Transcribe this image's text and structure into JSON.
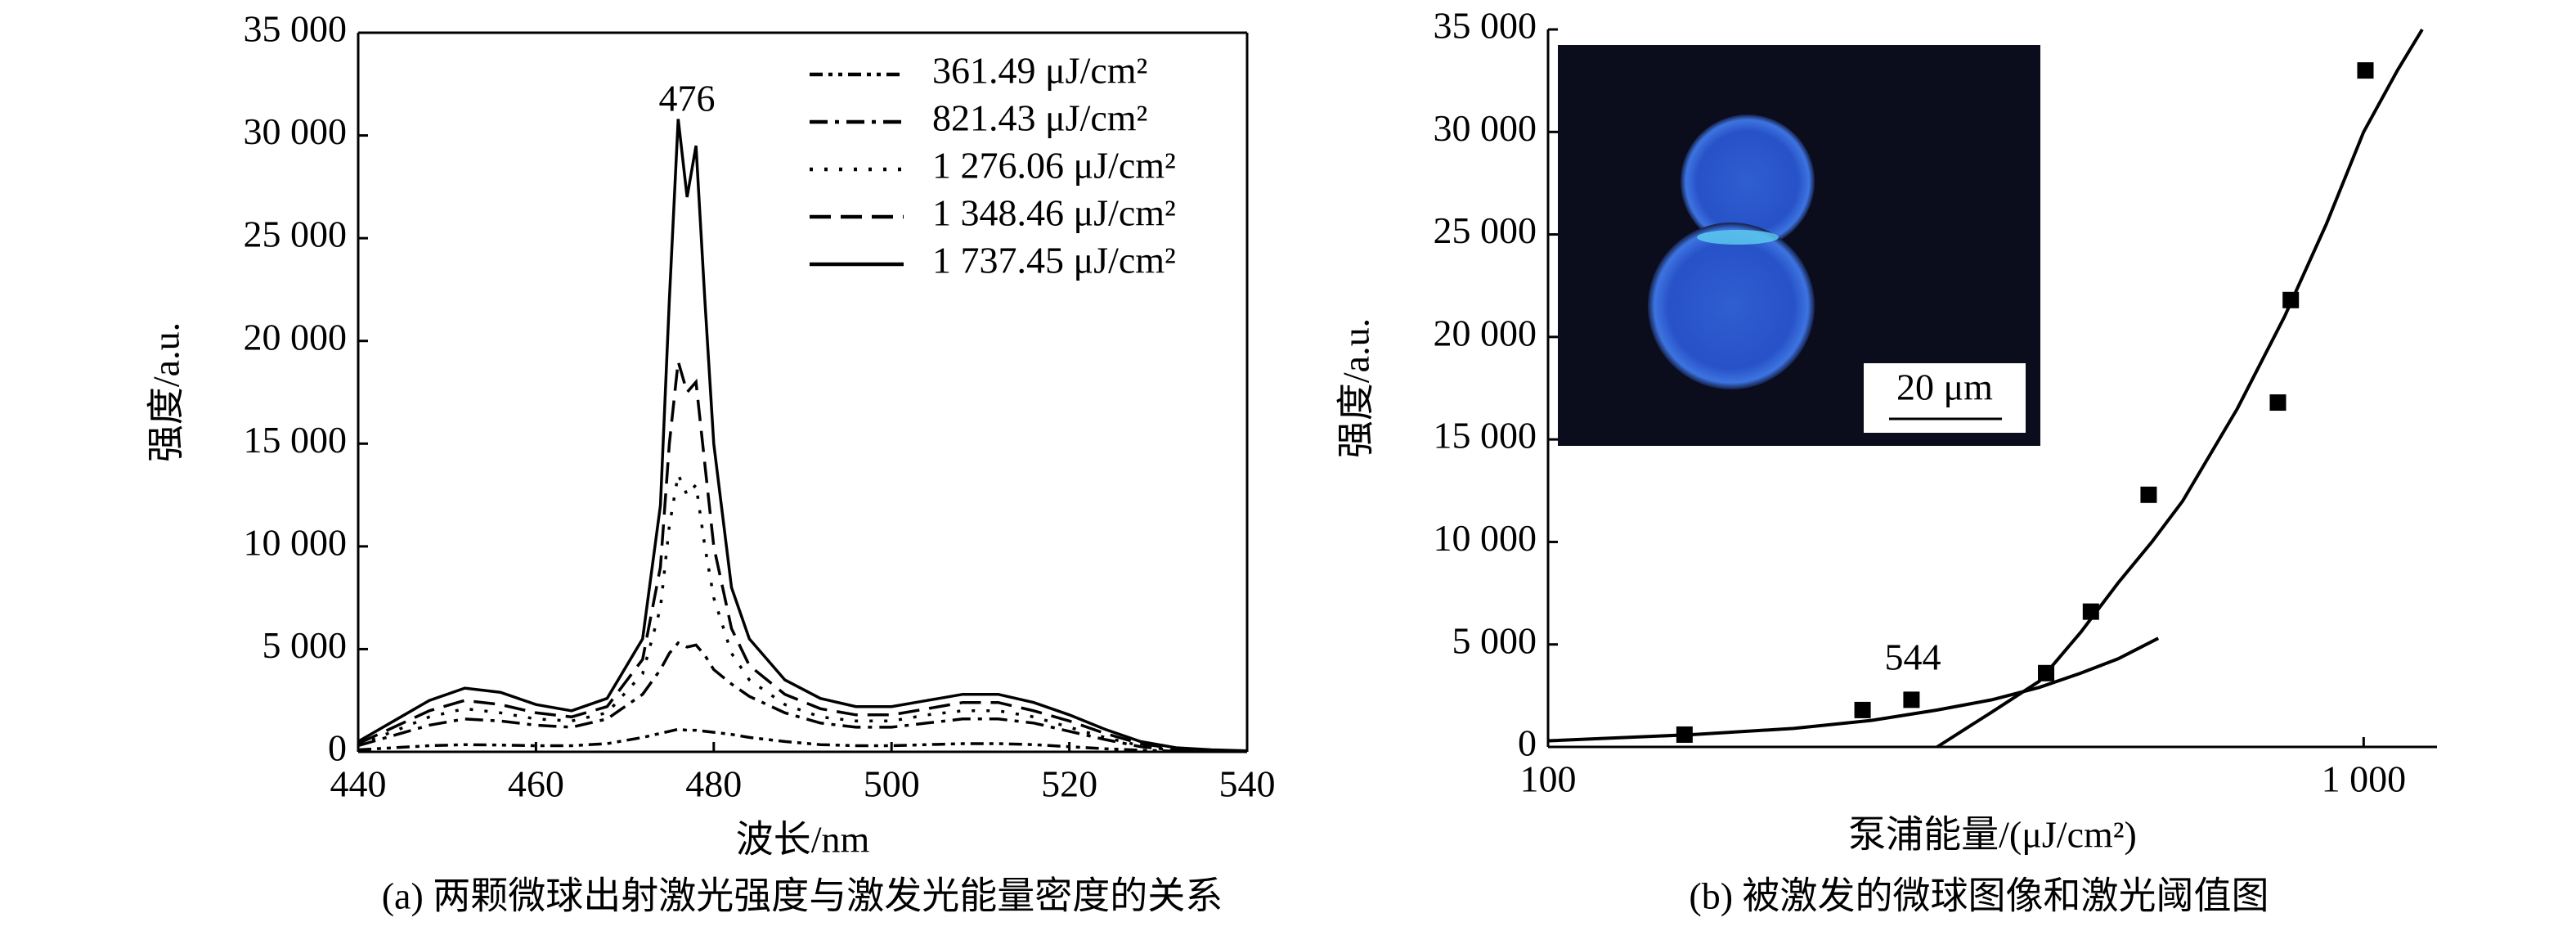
{
  "chart_data": [
    {
      "type": "line",
      "xlabel": "波长/nm",
      "ylabel": "强度/a.u.",
      "caption": "(a) 两颗微球出射激光强度与激发光能量密度的关系",
      "annotations": [
        "476"
      ],
      "xlim": [
        440,
        540
      ],
      "xticks": [
        440,
        460,
        480,
        500,
        520,
        540
      ],
      "ylim": [
        0,
        35000
      ],
      "yticks": [
        {
          "value": 0,
          "label": "0"
        },
        {
          "value": 5000,
          "label": "5 000"
        },
        {
          "value": 10000,
          "label": "10 000"
        },
        {
          "value": 15000,
          "label": "15 000"
        },
        {
          "value": 20000,
          "label": "20 000"
        },
        {
          "value": 25000,
          "label": "25 000"
        },
        {
          "value": 30000,
          "label": "30 000"
        },
        {
          "value": 35000,
          "label": "35 000"
        }
      ],
      "x": [
        440,
        444,
        448,
        452,
        456,
        460,
        464,
        468,
        472,
        474,
        475,
        476,
        477,
        478,
        479,
        480,
        482,
        484,
        488,
        492,
        496,
        500,
        504,
        508,
        512,
        516,
        520,
        524,
        528,
        532,
        536,
        540
      ],
      "series": [
        {
          "name": "361.49 μJ/cm²",
          "color": "#000000",
          "line_style": "dash-dot-dot",
          "values": [
            100,
            200,
            300,
            350,
            330,
            300,
            300,
            400,
            700,
            900,
            1000,
            1100,
            1050,
            1050,
            1000,
            950,
            850,
            700,
            500,
            350,
            300,
            300,
            350,
            400,
            400,
            350,
            250,
            150,
            80,
            30,
            20,
            10
          ]
        },
        {
          "name": "821.43 μJ/cm²",
          "color": "#000000",
          "line_style": "dash-dot",
          "values": [
            300,
            800,
            1300,
            1600,
            1500,
            1300,
            1200,
            1600,
            2800,
            4000,
            4800,
            5300,
            5100,
            5200,
            4700,
            4000,
            3300,
            2700,
            1900,
            1400,
            1200,
            1200,
            1400,
            1600,
            1600,
            1400,
            1000,
            600,
            250,
            80,
            40,
            20
          ]
        },
        {
          "name": "1 276.06 μJ/cm²",
          "color": "#000000",
          "line_style": "dotted",
          "values": [
            350,
            1000,
            1700,
            2100,
            1900,
            1600,
            1500,
            1900,
            3800,
            7000,
            11000,
            13500,
            12500,
            13000,
            10000,
            7500,
            4800,
            3500,
            2300,
            1700,
            1500,
            1500,
            1800,
            2000,
            2000,
            1700,
            1200,
            700,
            300,
            100,
            60,
            30
          ]
        },
        {
          "name": "1 348.46 μJ/cm²",
          "color": "#000000",
          "line_style": "dashed",
          "values": [
            400,
            1200,
            2000,
            2500,
            2300,
            1900,
            1700,
            2200,
            4500,
            9000,
            15000,
            19000,
            17500,
            18000,
            14000,
            10000,
            6000,
            4200,
            2800,
            2100,
            1800,
            1800,
            2100,
            2400,
            2400,
            2000,
            1500,
            900,
            400,
            150,
            80,
            40
          ]
        },
        {
          "name": "1 737.45 μJ/cm²",
          "color": "#000000",
          "line_style": "solid",
          "values": [
            500,
            1500,
            2500,
            3100,
            2900,
            2300,
            2000,
            2600,
            5500,
            12000,
            22000,
            30800,
            27000,
            29500,
            22000,
            15000,
            8000,
            5500,
            3500,
            2600,
            2200,
            2200,
            2500,
            2800,
            2800,
            2400,
            1800,
            1100,
            500,
            200,
            100,
            50
          ]
        }
      ]
    },
    {
      "type": "scatter",
      "xlabel": "泵浦能量/(μJ/cm²)",
      "ylabel": "强度/a.u.",
      "caption": "(b) 被激发的微球图像和激光阈值图",
      "annotations": [
        "544"
      ],
      "inset_scale_label": "20 μm",
      "xscale": "log",
      "xlim": [
        100,
        1230
      ],
      "xticks": [
        100,
        {
          "value": 1000,
          "label": "1 000"
        }
      ],
      "ylim": [
        0,
        35000
      ],
      "yticks": [
        {
          "value": 0,
          "label": "0"
        },
        {
          "value": 5000,
          "label": "5 000"
        },
        {
          "value": 10000,
          "label": "10 000"
        },
        {
          "value": 15000,
          "label": "15 000"
        },
        {
          "value": 20000,
          "label": "20 000"
        },
        {
          "value": 25000,
          "label": "25 000"
        },
        {
          "value": 30000,
          "label": "30 000"
        },
        {
          "value": 35000,
          "label": "35 000"
        }
      ],
      "color": "#000000",
      "x": [
        147,
        243,
        279,
        408,
        463,
        545,
        785,
        814,
        1005
      ],
      "values": [
        600,
        1800,
        2300,
        3600,
        6600,
        12300,
        16800,
        21800,
        33000
      ],
      "fits": [
        {
          "x": [
            100,
            150,
            200,
            250,
            300,
            350,
            400,
            450,
            500,
            560
          ],
          "values": [
            300,
            600,
            900,
            1300,
            1800,
            2300,
            2900,
            3600,
            4300,
            5300
          ]
        },
        {
          "x": [
            300,
            350,
            400,
            450,
            500,
            550,
            600,
            700,
            800,
            900,
            1000,
            1100,
            1180
          ],
          "values": [
            0,
            1700,
            3200,
            5600,
            8000,
            10000,
            12000,
            16500,
            21000,
            25500,
            30000,
            33000,
            35000
          ]
        }
      ]
    }
  ]
}
